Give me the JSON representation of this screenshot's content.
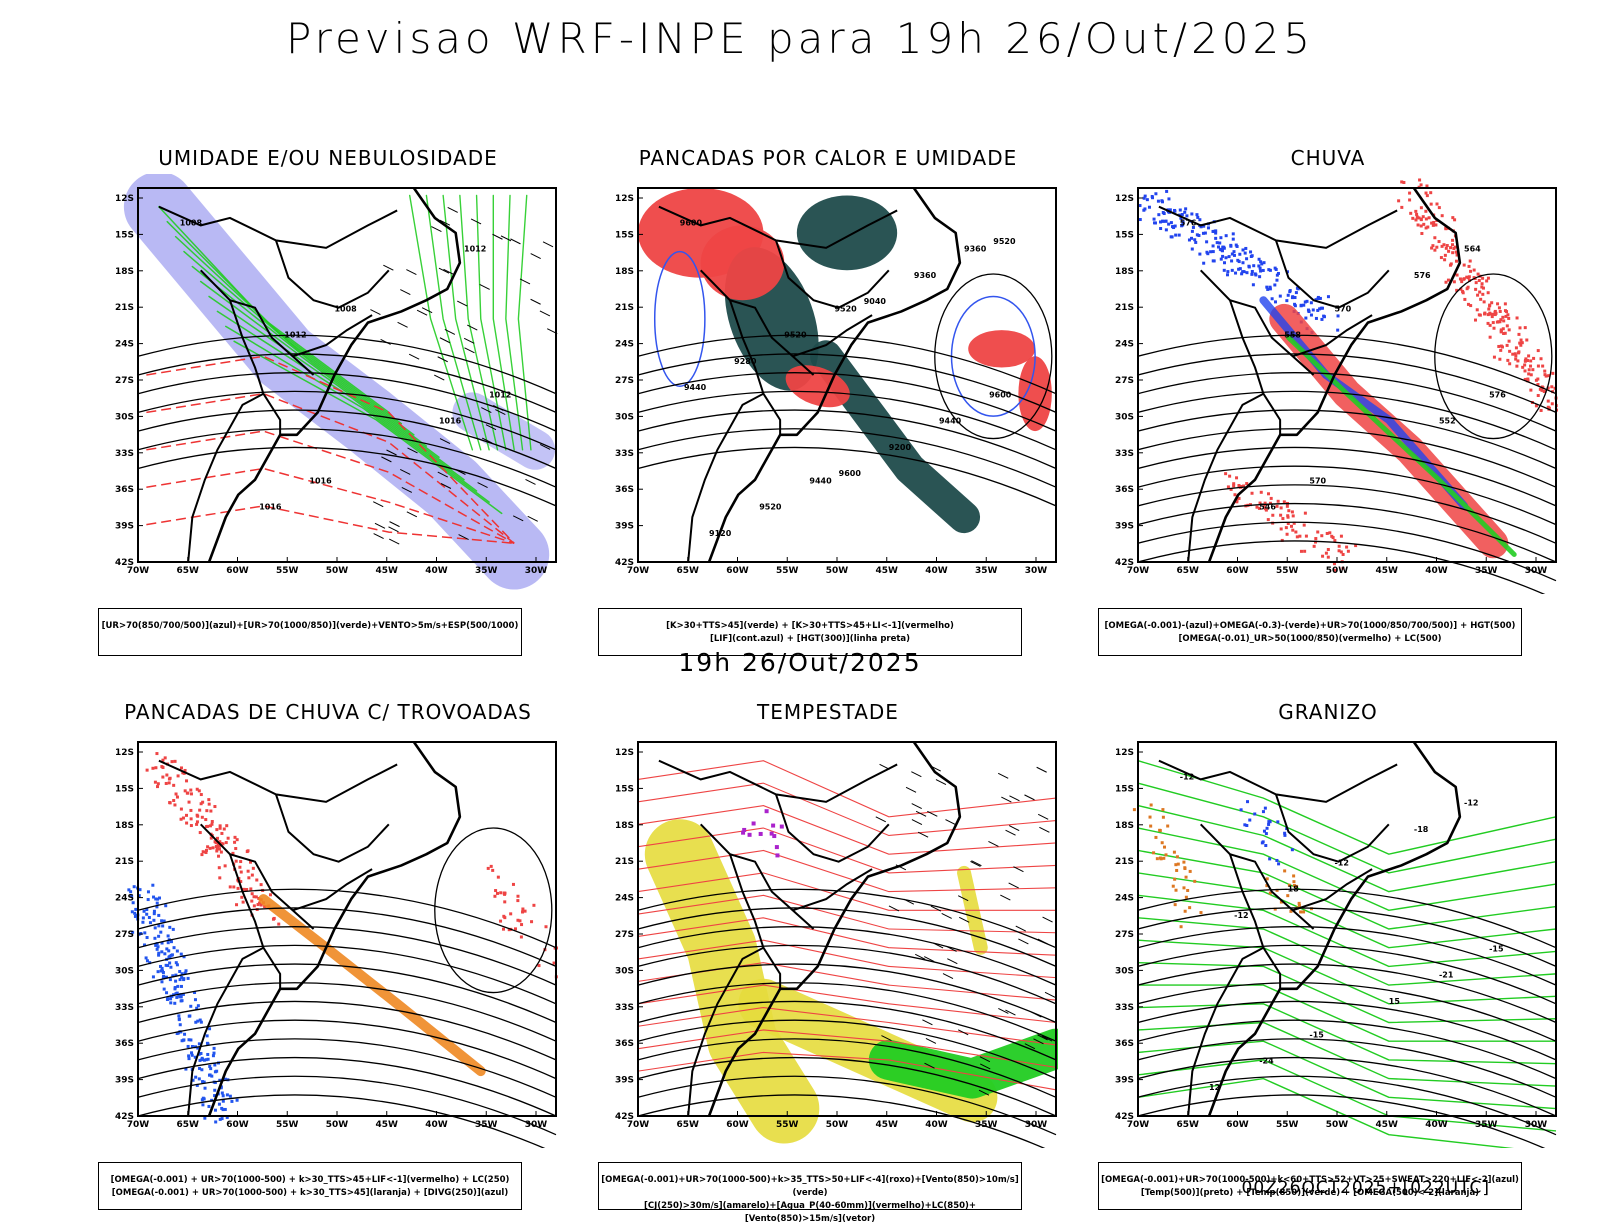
{
  "header": {
    "title": "Previsao WRF-INPE  para 19h 26/Out/2025"
  },
  "subtitle": "19h 26/Out/2025",
  "footer": "00Z26OCT2025+[022UTC]",
  "axes": {
    "lat_labels": [
      "12S",
      "15S",
      "18S",
      "21S",
      "24S",
      "27S",
      "30S",
      "33S",
      "36S",
      "39S",
      "42S"
    ],
    "lon_labels": [
      "70W",
      "65W",
      "60W",
      "55W",
      "50W",
      "45W",
      "40W",
      "35W",
      "30W"
    ]
  },
  "panels": [
    {
      "id": "umidade",
      "title": "UMIDADE E/OU NEBULOSIDADE",
      "legend": [
        "[UR>70(850/700/500)](azul)+[UR>70(1000/850)](verde)+VENTO>5m/s+ESP(500/1000)"
      ],
      "contour_labels": [
        "1008",
        "1008",
        "1012",
        "1016",
        "1012",
        "1012",
        "1016",
        "1016"
      ],
      "colors": {
        "blue": "#9b9bf0",
        "green": "#22cc22",
        "red": "#ee3333"
      }
    },
    {
      "id": "pancadas_calor",
      "title": "PANCADAS POR CALOR E UMIDADE",
      "legend": [
        "[K>30+TTS>45](verde) + [K>30+TTS>45+LI<-1](vermelho)",
        "[LIF](cont.azul) + [HGT(300)](linha preta)"
      ],
      "contour_labels": [
        "9600",
        "9520",
        "9600",
        "9440",
        "9360",
        "9520",
        "9440",
        "9520",
        "9360",
        "9280",
        "9200",
        "9120",
        "9040",
        "9440",
        "9600",
        "9520"
      ],
      "colors": {
        "green": "#1f4b4b",
        "red": "#ee4444",
        "blue": "#3355ee"
      }
    },
    {
      "id": "chuva",
      "title": "CHUVA",
      "legend": [
        "[OMEGA(-0.001)-(azul)+OMEGA(-0.3)-(verde)+UR>70(1000/850/700/500)] + HGT(500)",
        "[OMEGA(-0.01)_UR>50(1000/850)(vermelho) + LC(500)"
      ],
      "contour_labels": [
        "576",
        "570",
        "576",
        "570",
        "564",
        "558",
        "552",
        "546",
        "576"
      ],
      "colors": {
        "red": "#ee4444",
        "blue": "#2244ee",
        "green": "#22cc22"
      }
    },
    {
      "id": "trovoadas",
      "title": "PANCADAS DE CHUVA C/ TROVOADAS",
      "legend": [
        "[OMEGA(-0.001) + UR>70(1000-500) + k>30_TTS>45+LIF<-1](vermelho) + LC(250)",
        "[OMEGA(-0.001) + UR>70(1000-500) + k>30_TTS>45](laranja) + [DIVG(250)](azul)"
      ],
      "contour_labels": [],
      "colors": {
        "red": "#ee4444",
        "orange": "#ee8822",
        "blue": "#2255ee"
      }
    },
    {
      "id": "tempestade",
      "title": "TEMPESTADE",
      "legend": [
        "[OMEGA(-0.001)+UR>70(1000-500)+k>35_TTS>50+LIF<-4](roxo)+[Vento(850)>10m/s](verde)",
        "[CJ(250)>30m/s](amarelo)+[Agua_P(40-60mm)](vermelho)+LC(850)+[Vento(850)>15m/s](vetor)"
      ],
      "contour_labels": [],
      "colors": {
        "yellow": "#e6dc3c",
        "green": "#22cc22",
        "red": "#ee4444",
        "purple": "#aa22cc"
      }
    },
    {
      "id": "granizo",
      "title": "GRANIZO",
      "legend": [
        "[OMEGA(-0.001)+UR>70(1000-500)+k<60+TTS>52+VT>25+SWEAT>220+LIF<-2](azul)",
        "[Temp(500)](preto) + [Temp(850)](verde) + [OMEGA(500)<-2](laranja)"
      ],
      "contour_labels": [
        "-12",
        "-12",
        "-15",
        "-15",
        "-12",
        "-18",
        "-21",
        "-24",
        "-18",
        "-12",
        "15",
        "12"
      ],
      "colors": {
        "green": "#22cc22",
        "orange": "#dd7722",
        "blue": "#2244ee"
      }
    }
  ]
}
